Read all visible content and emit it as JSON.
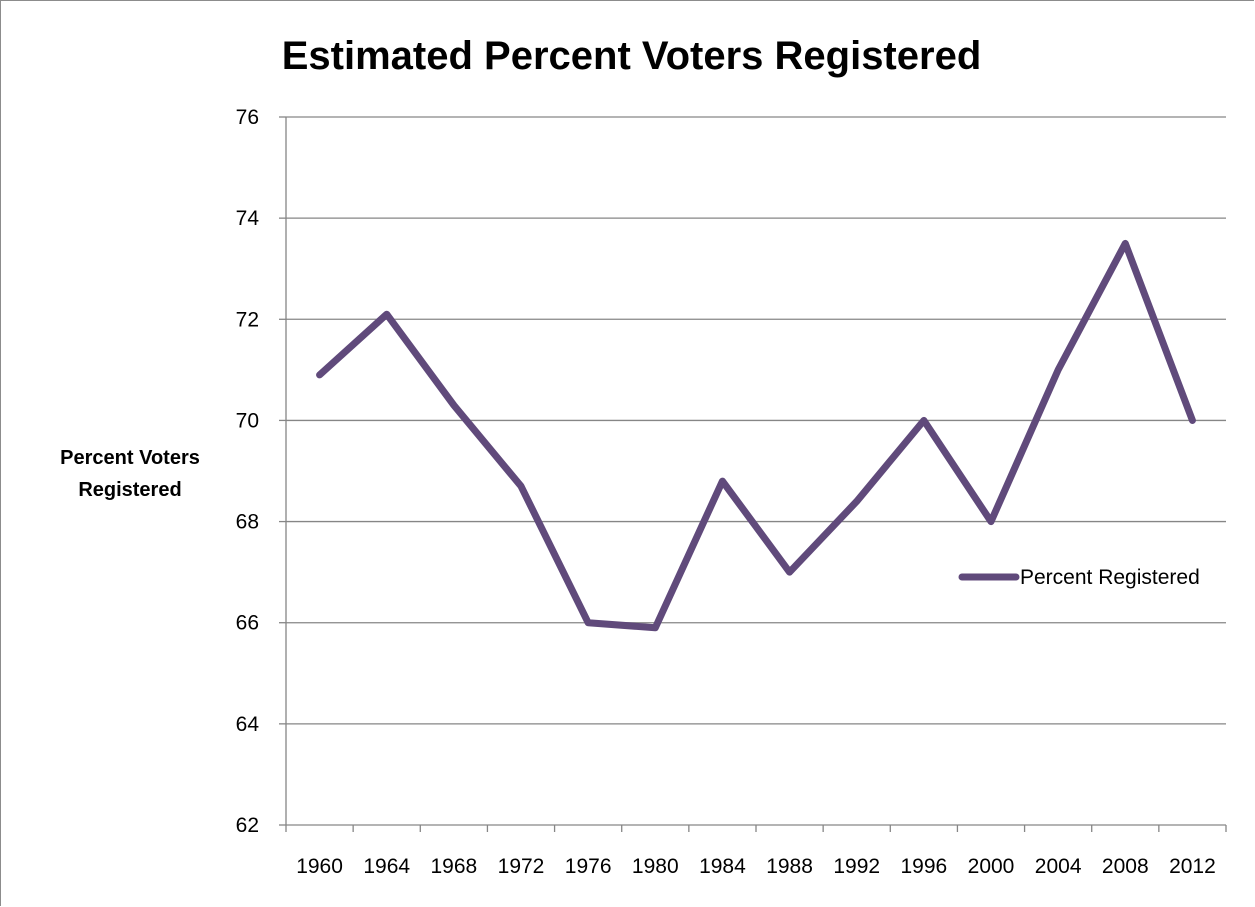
{
  "chart_data": {
    "type": "line",
    "title": "Estimated Percent Voters Registered",
    "xlabel": "",
    "ylabel_lines": [
      "Percent Voters",
      "Registered"
    ],
    "categories": [
      "1960",
      "1964",
      "1968",
      "1972",
      "1976",
      "1980",
      "1984",
      "1988",
      "1992",
      "1996",
      "2000",
      "2004",
      "2008",
      "2012"
    ],
    "series": [
      {
        "name": "Percent Registered",
        "color": "#604a7b",
        "values": [
          70.9,
          72.1,
          70.3,
          68.7,
          66.0,
          65.9,
          68.8,
          67.0,
          68.4,
          70.0,
          68.0,
          71.0,
          73.5,
          70.0
        ]
      }
    ],
    "ylim": [
      62,
      76
    ],
    "yticks": [
      62,
      64,
      66,
      68,
      70,
      72,
      74,
      76
    ],
    "grid": true,
    "legend_position": "right"
  }
}
